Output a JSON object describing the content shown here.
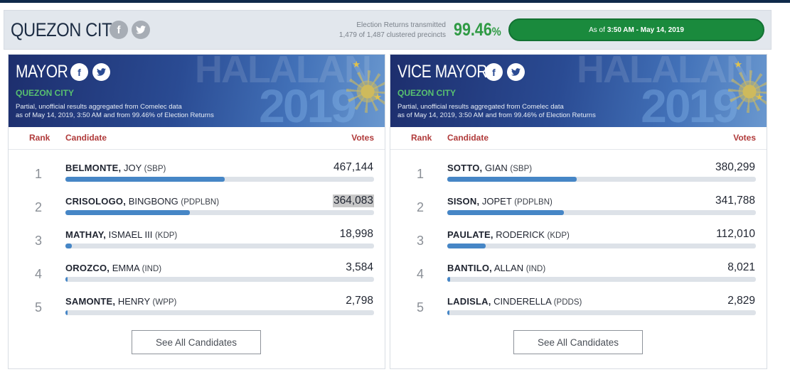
{
  "header": {
    "city": "QUEZON CITY",
    "returns_label": "Election Returns transmitted",
    "returns_detail": "1,479 of 1,487 clustered precincts",
    "returns_pct": "99.46",
    "pct_sign": "%",
    "as_of_prefix": "As of",
    "as_of_value": "3:50 AM - May 14, 2019",
    "progress_fraction": 0.9946
  },
  "banner": {
    "deco_text": "HALALAN",
    "deco_year": "2019"
  },
  "cards": [
    {
      "title": "MAYOR",
      "subtitle": "QUEZON CITY",
      "note_line1": "Partial, unofficial results aggregated from Comelec data",
      "note_line2": "as of May 14, 2019, 3:50 AM and from 99.46% of Election Returns",
      "col_rank": "Rank",
      "col_candidate": "Candidate",
      "col_votes": "Votes",
      "candidates": [
        {
          "rank": "1",
          "last": "BELMONTE,",
          "first": "JOY",
          "party": "(SBP)",
          "votes": "467,144",
          "share": 0.517
        },
        {
          "rank": "2",
          "last": "CRISOLOGO,",
          "first": "BINGBONG",
          "party": "(PDPLBN)",
          "votes": "364,083",
          "share": 0.403
        },
        {
          "rank": "3",
          "last": "MATHAY,",
          "first": "ISMAEL III",
          "party": "(KDP)",
          "votes": "18,998",
          "share": 0.021
        },
        {
          "rank": "4",
          "last": "OROZCO,",
          "first": "EMMA",
          "party": "(IND)",
          "votes": "3,584",
          "share": 0.004
        },
        {
          "rank": "5",
          "last": "SAMONTE,",
          "first": "HENRY",
          "party": "(WPP)",
          "votes": "2,798",
          "share": 0.003
        }
      ],
      "see_all": "See All Candidates"
    },
    {
      "title": "VICE MAYOR",
      "subtitle": "QUEZON CITY",
      "note_line1": "Partial, unofficial results aggregated from Comelec data",
      "note_line2": "as of May 14, 2019, 3:50 AM and from 99.46% of Election Returns",
      "col_rank": "Rank",
      "col_candidate": "Candidate",
      "col_votes": "Votes",
      "candidates": [
        {
          "rank": "1",
          "last": "SOTTO,",
          "first": "GIAN",
          "party": "(SBP)",
          "votes": "380,299",
          "share": 0.419
        },
        {
          "rank": "2",
          "last": "SISON,",
          "first": "JOPET",
          "party": "(PDPLBN)",
          "votes": "341,788",
          "share": 0.377
        },
        {
          "rank": "3",
          "last": "PAULATE,",
          "first": "RODERICK",
          "party": "(KDP)",
          "votes": "112,010",
          "share": 0.124
        },
        {
          "rank": "4",
          "last": "BANTILO,",
          "first": "ALLAN",
          "party": "(IND)",
          "votes": "8,021",
          "share": 0.009
        },
        {
          "rank": "5",
          "last": "LADISLA,",
          "first": "CINDERELLA",
          "party": "(PDDS)",
          "votes": "2,829",
          "share": 0.003
        }
      ],
      "see_all": "See All Candidates"
    }
  ],
  "icons": {
    "facebook": "facebook-icon",
    "twitter": "twitter-icon"
  },
  "colors": {
    "accent_green": "#2f9a44",
    "bar_blue": "#4686c6",
    "header_red": "#b03a3a",
    "subtitle_green": "#58c070"
  }
}
